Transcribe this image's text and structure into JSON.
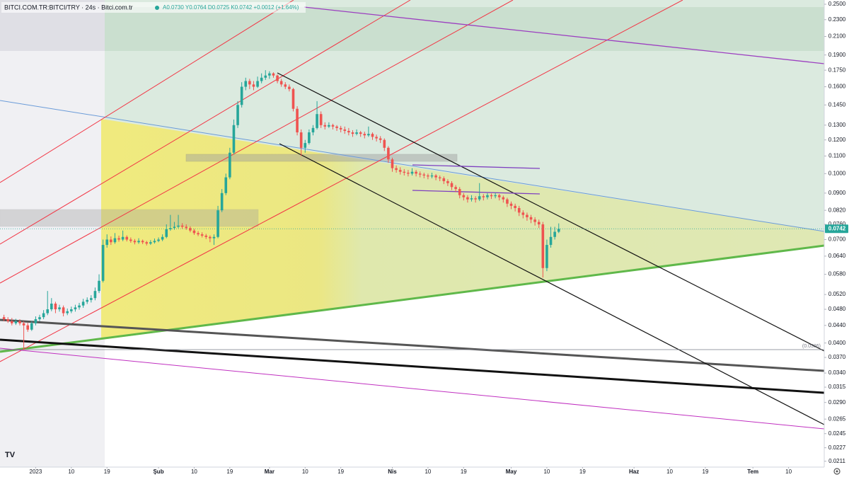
{
  "chart_data": {
    "type": "candlestick",
    "title": "BITCI.COM.TR:BITCI/TRY · 24s · Bitci.com.tr",
    "subtitle": "A0.0730 Y0.0764 D0.0725 K0.0742 +0.0012 (+1.64%)",
    "log_scale": true,
    "up_color": "#26a69a",
    "down_color": "#ef5350",
    "ylim": [
      0.0206,
      0.2558
    ],
    "xlim": [
      "2022-12-23",
      "2023-07-19"
    ],
    "yticks": [
      {
        "value": 0.25,
        "label": "0.2500"
      },
      {
        "value": 0.23,
        "label": "0.2300"
      },
      {
        "value": 0.21,
        "label": "0.2100"
      },
      {
        "value": 0.19,
        "label": "0.1900"
      },
      {
        "value": 0.175,
        "label": "0.1750"
      },
      {
        "value": 0.16,
        "label": "0.1600"
      },
      {
        "value": 0.145,
        "label": "0.1450"
      },
      {
        "value": 0.13,
        "label": "0.1300"
      },
      {
        "value": 0.12,
        "label": "0.1200"
      },
      {
        "value": 0.11,
        "label": "0.1100"
      },
      {
        "value": 0.1,
        "label": "0.1000"
      },
      {
        "value": 0.09,
        "label": "0.0900"
      },
      {
        "value": 0.082,
        "label": "0.0820"
      },
      {
        "value": 0.076,
        "label": "0.0760"
      },
      {
        "value": 0.07,
        "label": "0.0700"
      },
      {
        "value": 0.064,
        "label": "0.0640"
      },
      {
        "value": 0.058,
        "label": "0.0580"
      },
      {
        "value": 0.052,
        "label": "0.0520"
      },
      {
        "value": 0.048,
        "label": "0.0480"
      },
      {
        "value": 0.044,
        "label": "0.0440"
      },
      {
        "value": 0.04,
        "label": "0.0400"
      },
      {
        "value": 0.037,
        "label": "0.0370"
      },
      {
        "value": 0.034,
        "label": "0.0340"
      },
      {
        "value": 0.0315,
        "label": "0.0315"
      },
      {
        "value": 0.029,
        "label": "0.0290"
      },
      {
        "value": 0.0265,
        "label": "0.0265"
      },
      {
        "value": 0.0245,
        "label": "0.0245"
      },
      {
        "value": 0.0227,
        "label": "0.0227"
      },
      {
        "value": 0.0211,
        "label": "0.0211"
      }
    ],
    "xticks": [
      {
        "value": "2023-01-01",
        "label": "2023"
      },
      {
        "value": "2023-01-10",
        "label": "10"
      },
      {
        "value": "2023-01-19",
        "label": "19"
      },
      {
        "value": "2023-02-01",
        "label": "Şub"
      },
      {
        "value": "2023-02-10",
        "label": "10"
      },
      {
        "value": "2023-02-19",
        "label": "19"
      },
      {
        "value": "2023-03-01",
        "label": "Mar"
      },
      {
        "value": "2023-03-10",
        "label": "10"
      },
      {
        "value": "2023-03-19",
        "label": "19"
      },
      {
        "value": "2023-04-01",
        "label": "Nis"
      },
      {
        "value": "2023-04-10",
        "label": "10"
      },
      {
        "value": "2023-04-19",
        "label": "19"
      },
      {
        "value": "2023-05-01",
        "label": "May"
      },
      {
        "value": "2023-05-10",
        "label": "10"
      },
      {
        "value": "2023-05-19",
        "label": "19"
      },
      {
        "value": "2023-06-01",
        "label": "Haz"
      },
      {
        "value": "2023-06-10",
        "label": "10"
      },
      {
        "value": "2023-06-19",
        "label": "19"
      },
      {
        "value": "2023-07-01",
        "label": "Tem"
      },
      {
        "value": "2023-07-10",
        "label": "10"
      }
    ],
    "hlines": [
      {
        "value": 0.0386,
        "label": "(0.0386)"
      }
    ],
    "last_price": 0.0742,
    "x": [
      "2022-12-24",
      "2022-12-25",
      "2022-12-26",
      "2022-12-27",
      "2022-12-28",
      "2022-12-29",
      "2022-12-30",
      "2022-12-31",
      "2023-01-01",
      "2023-01-02",
      "2023-01-03",
      "2023-01-04",
      "2023-01-05",
      "2023-01-06",
      "2023-01-07",
      "2023-01-08",
      "2023-01-09",
      "2023-01-10",
      "2023-01-11",
      "2023-01-12",
      "2023-01-13",
      "2023-01-14",
      "2023-01-15",
      "2023-01-16",
      "2023-01-17",
      "2023-01-18",
      "2023-01-19",
      "2023-01-20",
      "2023-01-21",
      "2023-01-22",
      "2023-01-23",
      "2023-01-24",
      "2023-01-25",
      "2023-01-26",
      "2023-01-27",
      "2023-01-28",
      "2023-01-29",
      "2023-01-30",
      "2023-01-31",
      "2023-02-01",
      "2023-02-02",
      "2023-02-03",
      "2023-02-04",
      "2023-02-05",
      "2023-02-06",
      "2023-02-07",
      "2023-02-08",
      "2023-02-09",
      "2023-02-10",
      "2023-02-11",
      "2023-02-12",
      "2023-02-13",
      "2023-02-14",
      "2023-02-15",
      "2023-02-16",
      "2023-02-17",
      "2023-02-18",
      "2023-02-19",
      "2023-02-20",
      "2023-02-21",
      "2023-02-22",
      "2023-02-23",
      "2023-02-24",
      "2023-02-25",
      "2023-02-26",
      "2023-02-27",
      "2023-02-28",
      "2023-03-01",
      "2023-03-02",
      "2023-03-03",
      "2023-03-04",
      "2023-03-05",
      "2023-03-06",
      "2023-03-07",
      "2023-03-08",
      "2023-03-09",
      "2023-03-10",
      "2023-03-11",
      "2023-03-12",
      "2023-03-13",
      "2023-03-14",
      "2023-03-15",
      "2023-03-16",
      "2023-03-17",
      "2023-03-18",
      "2023-03-19",
      "2023-03-20",
      "2023-03-21",
      "2023-03-22",
      "2023-03-23",
      "2023-03-24",
      "2023-03-25",
      "2023-03-26",
      "2023-03-27",
      "2023-03-28",
      "2023-03-29",
      "2023-03-30",
      "2023-03-31",
      "2023-04-01",
      "2023-04-02",
      "2023-04-03",
      "2023-04-04",
      "2023-04-05",
      "2023-04-06",
      "2023-04-07",
      "2023-04-08",
      "2023-04-09",
      "2023-04-10",
      "2023-04-11",
      "2023-04-12",
      "2023-04-13",
      "2023-04-14",
      "2023-04-15",
      "2023-04-16",
      "2023-04-17",
      "2023-04-18",
      "2023-04-19",
      "2023-04-20",
      "2023-04-21",
      "2023-04-22",
      "2023-04-23",
      "2023-04-24",
      "2023-04-25",
      "2023-04-26",
      "2023-04-27",
      "2023-04-28",
      "2023-04-29",
      "2023-04-30",
      "2023-05-01",
      "2023-05-02",
      "2023-05-03",
      "2023-05-04",
      "2023-05-05",
      "2023-05-06",
      "2023-05-07",
      "2023-05-08",
      "2023-05-09",
      "2023-05-10",
      "2023-05-11",
      "2023-05-12",
      "2023-05-13"
    ],
    "ohlc": [
      [
        0.046,
        0.0466,
        0.045,
        0.0455
      ],
      [
        0.0455,
        0.046,
        0.0446,
        0.045
      ],
      [
        0.045,
        0.0458,
        0.044,
        0.0445
      ],
      [
        0.0445,
        0.0456,
        0.0441,
        0.045
      ],
      [
        0.045,
        0.0455,
        0.044,
        0.0445
      ],
      [
        0.0445,
        0.045,
        0.0385,
        0.044
      ],
      [
        0.044,
        0.0446,
        0.0425,
        0.043
      ],
      [
        0.043,
        0.045,
        0.0427,
        0.0445
      ],
      [
        0.0445,
        0.0462,
        0.044,
        0.0455
      ],
      [
        0.0455,
        0.0466,
        0.045,
        0.046
      ],
      [
        0.046,
        0.0478,
        0.0455,
        0.047
      ],
      [
        0.047,
        0.053,
        0.0465,
        0.048
      ],
      [
        0.048,
        0.051,
        0.0475,
        0.0495
      ],
      [
        0.0495,
        0.05,
        0.047,
        0.048
      ],
      [
        0.048,
        0.0492,
        0.0474,
        0.0485
      ],
      [
        0.0485,
        0.049,
        0.0462,
        0.047
      ],
      [
        0.047,
        0.0482,
        0.0465,
        0.0475
      ],
      [
        0.0475,
        0.0487,
        0.047,
        0.048
      ],
      [
        0.048,
        0.0492,
        0.0474,
        0.0485
      ],
      [
        0.0485,
        0.0497,
        0.0479,
        0.049
      ],
      [
        0.049,
        0.0508,
        0.0484,
        0.05
      ],
      [
        0.05,
        0.0512,
        0.0494,
        0.0505
      ],
      [
        0.0505,
        0.0518,
        0.0498,
        0.051
      ],
      [
        0.051,
        0.054,
        0.0504,
        0.053
      ],
      [
        0.053,
        0.058,
        0.0524,
        0.056
      ],
      [
        0.056,
        0.07,
        0.0555,
        0.068
      ],
      [
        0.068,
        0.072,
        0.067,
        0.07
      ],
      [
        0.07,
        0.0712,
        0.068,
        0.069
      ],
      [
        0.069,
        0.0725,
        0.0684,
        0.0705
      ],
      [
        0.0705,
        0.0715,
        0.0692,
        0.07
      ],
      [
        0.07,
        0.0735,
        0.0694,
        0.071
      ],
      [
        0.071,
        0.0716,
        0.0693,
        0.07
      ],
      [
        0.07,
        0.0708,
        0.0688,
        0.0695
      ],
      [
        0.0695,
        0.0702,
        0.0682,
        0.069
      ],
      [
        0.069,
        0.0705,
        0.0684,
        0.0695
      ],
      [
        0.0695,
        0.07,
        0.0683,
        0.069
      ],
      [
        0.069,
        0.0695,
        0.0678,
        0.0685
      ],
      [
        0.0685,
        0.0698,
        0.068,
        0.069
      ],
      [
        0.069,
        0.0704,
        0.0685,
        0.0695
      ],
      [
        0.0695,
        0.0708,
        0.069,
        0.07
      ],
      [
        0.07,
        0.072,
        0.0694,
        0.071
      ],
      [
        0.071,
        0.076,
        0.0705,
        0.074
      ],
      [
        0.074,
        0.08,
        0.0734,
        0.0745
      ],
      [
        0.0745,
        0.077,
        0.0738,
        0.075
      ],
      [
        0.075,
        0.08,
        0.0744,
        0.0755
      ],
      [
        0.0755,
        0.0765,
        0.0742,
        0.075
      ],
      [
        0.075,
        0.076,
        0.0738,
        0.0745
      ],
      [
        0.0745,
        0.0752,
        0.0728,
        0.0735
      ],
      [
        0.0735,
        0.0742,
        0.0718,
        0.0725
      ],
      [
        0.0725,
        0.0733,
        0.0713,
        0.072
      ],
      [
        0.072,
        0.0728,
        0.0708,
        0.0715
      ],
      [
        0.0715,
        0.0722,
        0.0702,
        0.071
      ],
      [
        0.071,
        0.0716,
        0.069,
        0.0705
      ],
      [
        0.0705,
        0.072,
        0.068,
        0.071
      ],
      [
        0.071,
        0.084,
        0.0705,
        0.082
      ],
      [
        0.082,
        0.092,
        0.0812,
        0.09
      ],
      [
        0.09,
        0.1,
        0.089,
        0.098
      ],
      [
        0.098,
        0.115,
        0.097,
        0.112
      ],
      [
        0.112,
        0.134,
        0.111,
        0.13
      ],
      [
        0.13,
        0.148,
        0.128,
        0.145
      ],
      [
        0.145,
        0.164,
        0.143,
        0.16
      ],
      [
        0.16,
        0.168,
        0.157,
        0.165
      ],
      [
        0.165,
        0.167,
        0.158,
        0.162
      ],
      [
        0.162,
        0.165,
        0.157,
        0.16
      ],
      [
        0.16,
        0.169,
        0.159,
        0.165
      ],
      [
        0.165,
        0.172,
        0.163,
        0.168
      ],
      [
        0.168,
        0.175,
        0.166,
        0.17
      ],
      [
        0.17,
        0.174,
        0.167,
        0.172
      ],
      [
        0.172,
        0.173,
        0.168,
        0.17
      ],
      [
        0.17,
        0.171,
        0.163,
        0.165
      ],
      [
        0.165,
        0.167,
        0.16,
        0.162
      ],
      [
        0.162,
        0.164,
        0.158,
        0.16
      ],
      [
        0.16,
        0.162,
        0.156,
        0.158
      ],
      [
        0.158,
        0.159,
        0.14,
        0.142
      ],
      [
        0.142,
        0.144,
        0.123,
        0.125
      ],
      [
        0.125,
        0.127,
        0.11,
        0.115
      ],
      [
        0.115,
        0.12,
        0.112,
        0.118
      ],
      [
        0.118,
        0.127,
        0.117,
        0.125
      ],
      [
        0.125,
        0.13,
        0.123,
        0.128
      ],
      [
        0.128,
        0.148,
        0.127,
        0.138
      ],
      [
        0.138,
        0.14,
        0.128,
        0.13
      ],
      [
        0.13,
        0.132,
        0.127,
        0.129
      ],
      [
        0.129,
        0.132,
        0.128,
        0.13
      ],
      [
        0.13,
        0.131,
        0.127,
        0.129
      ],
      [
        0.129,
        0.13,
        0.126,
        0.128
      ],
      [
        0.128,
        0.1295,
        0.125,
        0.127
      ],
      [
        0.127,
        0.129,
        0.124,
        0.126
      ],
      [
        0.126,
        0.128,
        0.123,
        0.125
      ],
      [
        0.125,
        0.1265,
        0.122,
        0.124
      ],
      [
        0.124,
        0.127,
        0.123,
        0.125
      ],
      [
        0.125,
        0.126,
        0.122,
        0.124
      ],
      [
        0.124,
        0.1255,
        0.121,
        0.123
      ],
      [
        0.123,
        0.129,
        0.122,
        0.124
      ],
      [
        0.124,
        0.125,
        0.12,
        0.122
      ],
      [
        0.122,
        0.1235,
        0.119,
        0.121
      ],
      [
        0.121,
        0.1225,
        0.118,
        0.12
      ],
      [
        0.12,
        0.121,
        0.113,
        0.115
      ],
      [
        0.115,
        0.116,
        0.106,
        0.108
      ],
      [
        0.108,
        0.109,
        0.101,
        0.103
      ],
      [
        0.103,
        0.1045,
        0.1005,
        0.102
      ],
      [
        0.102,
        0.1035,
        0.0995,
        0.101
      ],
      [
        0.101,
        0.1025,
        0.099,
        0.1005
      ],
      [
        0.1005,
        0.102,
        0.0985,
        0.1
      ],
      [
        0.1,
        0.103,
        0.099,
        0.101
      ],
      [
        0.101,
        0.102,
        0.0985,
        0.1
      ],
      [
        0.1,
        0.1012,
        0.098,
        0.0995
      ],
      [
        0.0995,
        0.1005,
        0.0975,
        0.099
      ],
      [
        0.099,
        0.1,
        0.097,
        0.0985
      ],
      [
        0.0985,
        0.1005,
        0.0975,
        0.099
      ],
      [
        0.099,
        0.0998,
        0.0965,
        0.098
      ],
      [
        0.098,
        0.099,
        0.096,
        0.0975
      ],
      [
        0.0975,
        0.0985,
        0.0945,
        0.096
      ],
      [
        0.096,
        0.097,
        0.0935,
        0.095
      ],
      [
        0.095,
        0.096,
        0.0915,
        0.093
      ],
      [
        0.093,
        0.094,
        0.0905,
        0.092
      ],
      [
        0.092,
        0.093,
        0.0875,
        0.089
      ],
      [
        0.089,
        0.09,
        0.0865,
        0.088
      ],
      [
        0.088,
        0.089,
        0.0855,
        0.087
      ],
      [
        0.087,
        0.089,
        0.086,
        0.0875
      ],
      [
        0.0875,
        0.0885,
        0.0855,
        0.087
      ],
      [
        0.087,
        0.095,
        0.0862,
        0.0885
      ],
      [
        0.0885,
        0.0895,
        0.0865,
        0.088
      ],
      [
        0.088,
        0.09,
        0.087,
        0.089
      ],
      [
        0.089,
        0.0898,
        0.0872,
        0.0885
      ],
      [
        0.0885,
        0.0902,
        0.0875,
        0.089
      ],
      [
        0.089,
        0.0896,
        0.0865,
        0.088
      ],
      [
        0.088,
        0.0888,
        0.0855,
        0.087
      ],
      [
        0.087,
        0.0878,
        0.0835,
        0.085
      ],
      [
        0.085,
        0.086,
        0.0825,
        0.084
      ],
      [
        0.084,
        0.085,
        0.0815,
        0.083
      ],
      [
        0.083,
        0.084,
        0.0795,
        0.081
      ],
      [
        0.081,
        0.082,
        0.0785,
        0.08
      ],
      [
        0.08,
        0.081,
        0.0775,
        0.079
      ],
      [
        0.079,
        0.08,
        0.0765,
        0.078
      ],
      [
        0.078,
        0.079,
        0.0755,
        0.077
      ],
      [
        0.077,
        0.078,
        0.0745,
        0.076
      ],
      [
        0.076,
        0.077,
        0.057,
        0.06
      ],
      [
        0.06,
        0.07,
        0.059,
        0.068
      ],
      [
        0.068,
        0.075,
        0.067,
        0.071
      ],
      [
        0.071,
        0.075,
        0.07,
        0.073
      ],
      [
        0.073,
        0.0764,
        0.0725,
        0.0742
      ]
    ]
  }
}
